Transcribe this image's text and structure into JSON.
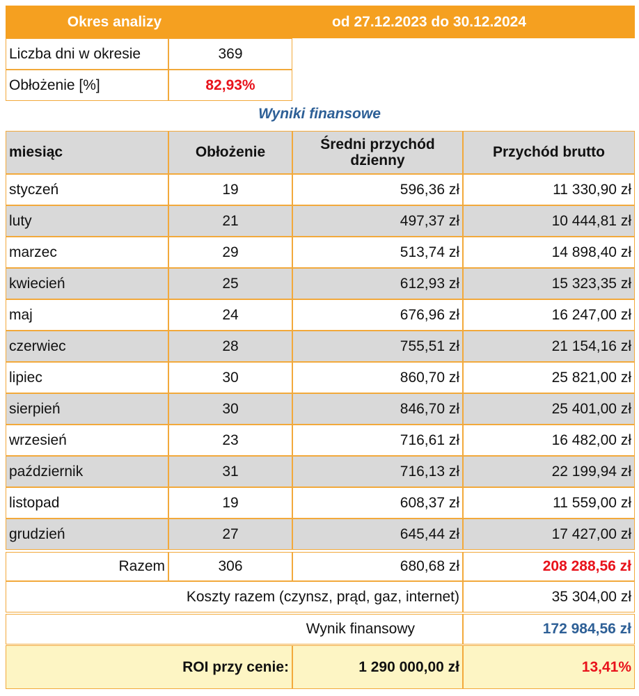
{
  "period": {
    "label": "Okres analizy",
    "range": "od 27.12.2023 do 30.12.2024"
  },
  "summary": {
    "days_label": "Liczba dni w okresie",
    "days_value": "369",
    "occupancy_label": "Obłożenie [%]",
    "occupancy_value": "82,93%"
  },
  "section_title": "Wyniki finansowe",
  "table": {
    "headers": [
      "miesiąc",
      "Obłożenie",
      "Średni przychód dzienny",
      "Przychód brutto"
    ],
    "rows": [
      [
        "styczeń",
        "19",
        "596,36 zł",
        "11 330,90 zł"
      ],
      [
        "luty",
        "21",
        "497,37 zł",
        "10 444,81 zł"
      ],
      [
        "marzec",
        "29",
        "513,74 zł",
        "14 898,40 zł"
      ],
      [
        "kwiecień",
        "25",
        "612,93 zł",
        "15 323,35 zł"
      ],
      [
        "maj",
        "24",
        "676,96 zł",
        "16 247,00 zł"
      ],
      [
        "czerwiec",
        "28",
        "755,51 zł",
        "21 154,16 zł"
      ],
      [
        "lipiec",
        "30",
        "860,70 zł",
        "25 821,00 zł"
      ],
      [
        "sierpień",
        "30",
        "846,70 zł",
        "25 401,00 zł"
      ],
      [
        "wrzesień",
        "23",
        "716,61 zł",
        "16 482,00 zł"
      ],
      [
        "październik",
        "31",
        "716,13 zł",
        "22 199,94 zł"
      ],
      [
        "listopad",
        "19",
        "608,37 zł",
        "11 559,00 zł"
      ],
      [
        "grudzień",
        "27",
        "645,44 zł",
        "17 427,00 zł"
      ]
    ],
    "total": {
      "label": "Razem",
      "occupancy": "306",
      "avg": "680,68 zł",
      "gross": "208 288,56 zł"
    },
    "costs": {
      "label": "Koszty razem (czynsz, prąd, gaz, internet)",
      "value": "35 304,00 zł"
    },
    "result": {
      "label": "Wynik finansowy",
      "value": "172 984,56 zł"
    },
    "roi": {
      "label": "ROI przy cenie:",
      "price": "1 290 000,00 zł",
      "value": "13,41%"
    }
  },
  "colors": {
    "header_orange": "#f5a020",
    "border": "#f2a93b",
    "row_gray": "#d9d9d9",
    "red": "#e8121b",
    "blue": "#2d5f96",
    "roi_bg": "#fdf5c4"
  }
}
